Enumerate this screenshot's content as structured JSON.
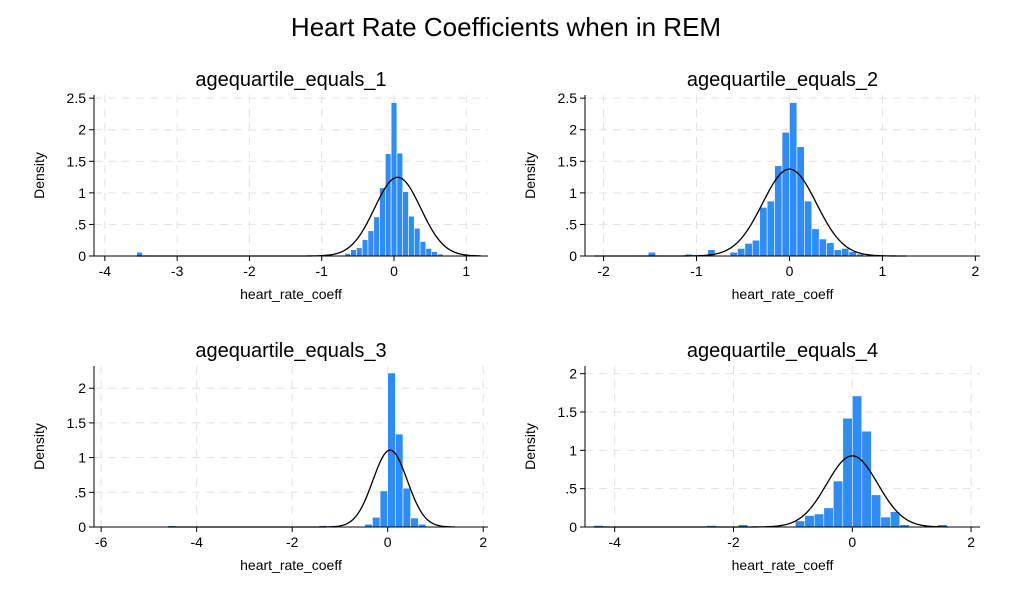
{
  "figure": {
    "title": "Heart Rate Coefficients when in REM"
  },
  "colors": {
    "bar": "#2f8cf2",
    "bar_edge": "#1f6fd6",
    "curve": "#000000",
    "grid": "#e2e2e2"
  },
  "chart_data": [
    {
      "type": "histogram",
      "title": "agequartile_equals_1",
      "xlabel": "heart_rate_coeff",
      "ylabel": "Density",
      "xlim": [
        -4.15,
        1.3
      ],
      "ylim": [
        0,
        2.55
      ],
      "xticks": [
        -4,
        -3,
        -2,
        -1,
        0,
        1
      ],
      "yticks": [
        0,
        0.5,
        1,
        1.5,
        2,
        2.5
      ],
      "ytick_labels": [
        "0",
        ".5",
        "1",
        "1.5",
        "2",
        "2.5"
      ],
      "grid": true,
      "bin_width": 0.08,
      "bins": [
        {
          "x0": -3.56,
          "density": 0.06
        },
        {
          "x0": -0.68,
          "density": 0.04
        },
        {
          "x0": -0.6,
          "density": 0.1
        },
        {
          "x0": -0.52,
          "density": 0.13
        },
        {
          "x0": -0.44,
          "density": 0.26
        },
        {
          "x0": -0.36,
          "density": 0.4
        },
        {
          "x0": -0.28,
          "density": 0.62
        },
        {
          "x0": -0.2,
          "density": 1.08
        },
        {
          "x0": -0.12,
          "density": 1.62
        },
        {
          "x0": -0.04,
          "density": 2.43
        },
        {
          "x0": 0.04,
          "density": 1.63
        },
        {
          "x0": 0.12,
          "density": 1.02
        },
        {
          "x0": 0.2,
          "density": 0.63
        },
        {
          "x0": 0.28,
          "density": 0.44
        },
        {
          "x0": 0.36,
          "density": 0.23
        },
        {
          "x0": 0.44,
          "density": 0.12
        },
        {
          "x0": 0.52,
          "density": 0.07
        },
        {
          "x0": 0.6,
          "density": 0.03
        }
      ],
      "normal_curve": {
        "mean": 0.05,
        "sd": 0.32,
        "range": [
          -3.55,
          1.2
        ]
      }
    },
    {
      "type": "histogram",
      "title": "agequartile_equals_2",
      "xlabel": "heart_rate_coeff",
      "ylabel": "Density",
      "xlim": [
        -2.2,
        2.05
      ],
      "ylim": [
        0,
        2.55
      ],
      "xticks": [
        -2,
        -1,
        0,
        1,
        2
      ],
      "yticks": [
        0,
        0.5,
        1,
        1.5,
        2,
        2.5
      ],
      "ytick_labels": [
        "0",
        ".5",
        "1",
        "1.5",
        "2",
        "2.5"
      ],
      "grid": true,
      "bin_width": 0.08,
      "bins": [
        {
          "x0": -1.52,
          "density": 0.06
        },
        {
          "x0": -1.12,
          "density": 0.03
        },
        {
          "x0": -0.88,
          "density": 0.1
        },
        {
          "x0": -0.64,
          "density": 0.06
        },
        {
          "x0": -0.56,
          "density": 0.12
        },
        {
          "x0": -0.48,
          "density": 0.2
        },
        {
          "x0": -0.4,
          "density": 0.25
        },
        {
          "x0": -0.32,
          "density": 0.77
        },
        {
          "x0": -0.24,
          "density": 0.87
        },
        {
          "x0": -0.16,
          "density": 1.43
        },
        {
          "x0": -0.08,
          "density": 1.96
        },
        {
          "x0": 0.0,
          "density": 2.43
        },
        {
          "x0": 0.08,
          "density": 1.73
        },
        {
          "x0": 0.16,
          "density": 0.87
        },
        {
          "x0": 0.24,
          "density": 0.43
        },
        {
          "x0": 0.32,
          "density": 0.27
        },
        {
          "x0": 0.4,
          "density": 0.21
        },
        {
          "x0": 0.48,
          "density": 0.1
        },
        {
          "x0": 0.56,
          "density": 0.12
        },
        {
          "x0": 0.64,
          "density": 0.07
        },
        {
          "x0": 0.72,
          "density": 0.03
        }
      ],
      "normal_curve": {
        "mean": 0.0,
        "sd": 0.29,
        "range": [
          -2.1,
          1.25
        ]
      }
    },
    {
      "type": "histogram",
      "title": "agequartile_equals_3",
      "xlabel": "heart_rate_coeff",
      "ylabel": "Density",
      "xlim": [
        -6.15,
        2.1
      ],
      "ylim": [
        0,
        2.32
      ],
      "xticks": [
        -6,
        -4,
        -2,
        0,
        2
      ],
      "yticks": [
        0,
        0.5,
        1,
        1.5,
        2
      ],
      "ytick_labels": [
        "0",
        ".5",
        "1",
        "1.5",
        "2"
      ],
      "grid": true,
      "bin_width": 0.16,
      "bins": [
        {
          "x0": -4.6,
          "density": 0.02
        },
        {
          "x0": -1.44,
          "density": 0.02
        },
        {
          "x0": -0.48,
          "density": 0.04
        },
        {
          "x0": -0.32,
          "density": 0.14
        },
        {
          "x0": -0.16,
          "density": 0.52
        },
        {
          "x0": 0.0,
          "density": 2.22
        },
        {
          "x0": 0.16,
          "density": 1.34
        },
        {
          "x0": 0.32,
          "density": 0.56
        },
        {
          "x0": 0.48,
          "density": 0.13
        },
        {
          "x0": 0.64,
          "density": 0.04
        }
      ],
      "normal_curve": {
        "mean": 0.05,
        "sd": 0.36,
        "range": [
          -4.6,
          1.4
        ]
      }
    },
    {
      "type": "histogram",
      "title": "agequartile_equals_4",
      "xlabel": "heart_rate_coeff",
      "ylabel": "Density",
      "xlim": [
        -4.5,
        2.15
      ],
      "ylim": [
        0,
        2.1
      ],
      "xticks": [
        -4,
        -2,
        0,
        2
      ],
      "yticks": [
        0,
        0.5,
        1,
        1.5,
        2
      ],
      "ytick_labels": [
        "0",
        ".5",
        "1",
        "1.5",
        "2"
      ],
      "grid": true,
      "bin_width": 0.16,
      "bins": [
        {
          "x0": -4.35,
          "density": 0.02
        },
        {
          "x0": -2.45,
          "density": 0.02
        },
        {
          "x0": -1.92,
          "density": 0.03
        },
        {
          "x0": -0.96,
          "density": 0.08
        },
        {
          "x0": -0.8,
          "density": 0.15
        },
        {
          "x0": -0.64,
          "density": 0.17
        },
        {
          "x0": -0.48,
          "density": 0.25
        },
        {
          "x0": -0.32,
          "density": 0.6
        },
        {
          "x0": -0.16,
          "density": 1.42
        },
        {
          "x0": 0.0,
          "density": 1.71
        },
        {
          "x0": 0.16,
          "density": 1.25
        },
        {
          "x0": 0.32,
          "density": 0.42
        },
        {
          "x0": 0.48,
          "density": 0.13
        },
        {
          "x0": 0.64,
          "density": 0.2
        },
        {
          "x0": 0.8,
          "density": 0.03
        },
        {
          "x0": 1.44,
          "density": 0.03
        }
      ],
      "normal_curve": {
        "mean": 0.0,
        "sd": 0.43,
        "range": [
          -4.35,
          1.6
        ]
      }
    }
  ]
}
